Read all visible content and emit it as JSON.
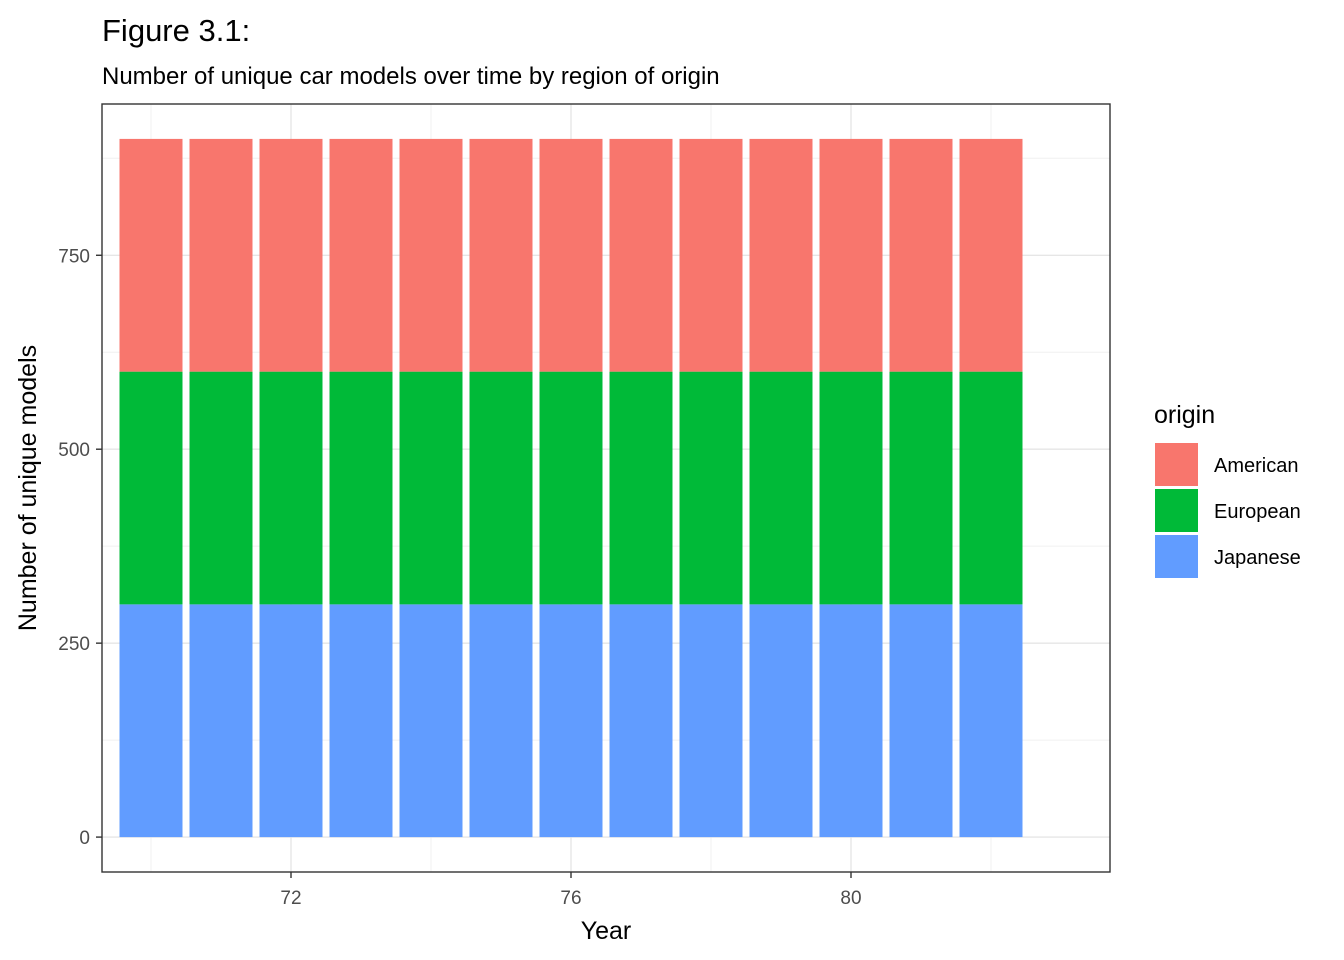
{
  "chart_data": {
    "type": "bar",
    "stacked": true,
    "title": "Figure 3.1:",
    "subtitle": "Number of unique car models over time by region of origin",
    "xlabel": "Year",
    "ylabel": "Number of unique models",
    "categories": [
      70,
      71,
      72,
      73,
      74,
      75,
      76,
      77,
      78,
      79,
      80,
      81,
      82
    ],
    "x_ticks": [
      72,
      76,
      80
    ],
    "y_ticks": [
      0,
      250,
      500,
      750
    ],
    "xlim": [
      69.3,
      83.7
    ],
    "ylim": [
      -45,
      945
    ],
    "grid": true,
    "legend": {
      "title": "origin",
      "position": "right",
      "entries": [
        "American",
        "European",
        "Japanese"
      ]
    },
    "series": [
      {
        "name": "Japanese",
        "color": "#619CFF",
        "values": [
          300,
          300,
          300,
          300,
          300,
          300,
          300,
          300,
          300,
          300,
          300,
          300,
          300
        ]
      },
      {
        "name": "European",
        "color": "#00BA38",
        "values": [
          300,
          300,
          300,
          300,
          300,
          300,
          300,
          300,
          300,
          300,
          300,
          300,
          300
        ]
      },
      {
        "name": "American",
        "color": "#F8766D",
        "values": [
          300,
          300,
          300,
          300,
          300,
          300,
          300,
          300,
          300,
          300,
          300,
          300,
          300
        ]
      }
    ]
  }
}
